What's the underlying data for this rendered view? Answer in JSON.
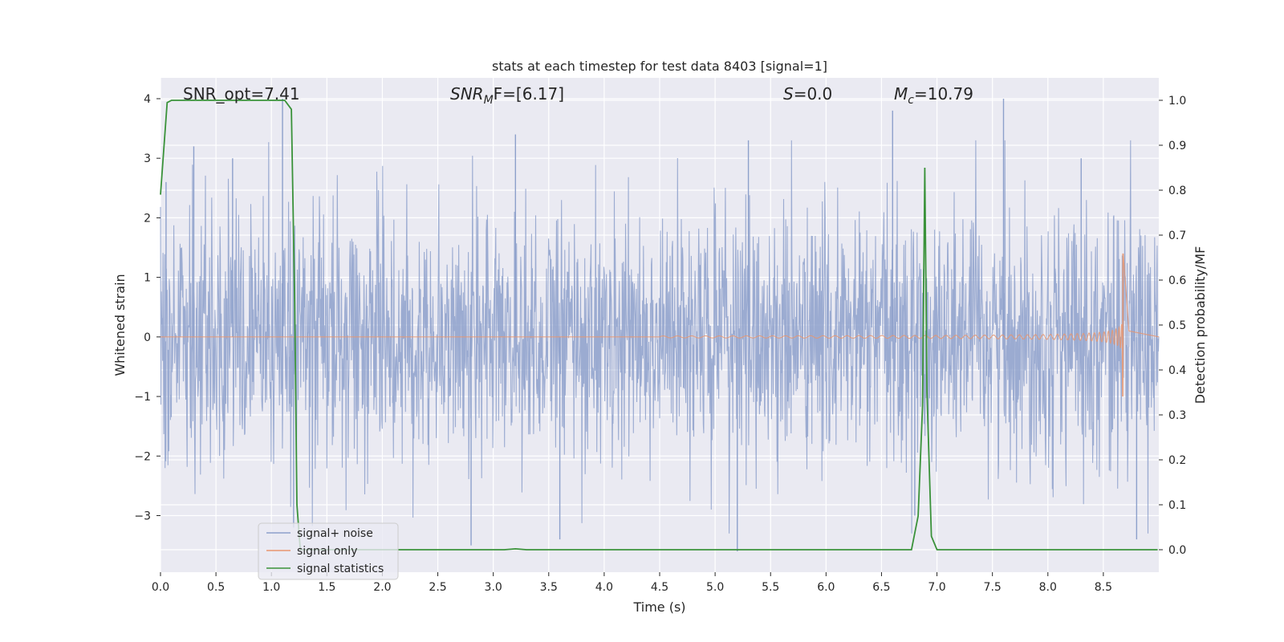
{
  "chart_data": {
    "type": "line",
    "title": "stats at each timestep for test data 8403 [signal=1]",
    "xlabel": "Time (s)",
    "ylabel": "Whitened strain",
    "ylabel_right": "Detection probability/MF",
    "xlim": [
      0.0,
      9.0
    ],
    "ylim": [
      -3.95,
      4.35
    ],
    "ylim_right": [
      -0.05,
      1.05
    ],
    "x_ticks": [
      "0.0",
      "0.5",
      "1.0",
      "1.5",
      "2.0",
      "2.5",
      "3.0",
      "3.5",
      "4.0",
      "4.5",
      "5.0",
      "5.5",
      "6.0",
      "6.5",
      "7.0",
      "7.5",
      "8.0",
      "8.5"
    ],
    "y_ticks": [
      "−3",
      "−2",
      "−1",
      "0",
      "1",
      "2",
      "3",
      "4"
    ],
    "y_ticks_right": [
      "0.0",
      "0.1",
      "0.2",
      "0.3",
      "0.4",
      "0.5",
      "0.6",
      "0.7",
      "0.8",
      "0.9",
      "1.0"
    ],
    "grid": true,
    "legend_position": "lower-left",
    "annotations": [
      {
        "label": "SNR_opt=7.41"
      },
      {
        "label_main": "SNR",
        "label_sub": "M",
        "label_rest": "F=[6.17]"
      },
      {
        "label_main": "S",
        "label_rest": "=0.0"
      },
      {
        "label_main": "M",
        "label_sub": "c",
        "label_rest": "=10.79"
      }
    ],
    "series": [
      {
        "name": "signal+ noise",
        "color": "#8da0cb",
        "axis": "left",
        "description_values": "whitened noisy strain, roughly ±1.6 spread with peaks near 4.0 (t≈1.1, 7.6) and −3.6 (t≈5.2)",
        "peaks": [
          [
            0.05,
            2.6
          ],
          [
            0.3,
            3.2
          ],
          [
            0.65,
            3.0
          ],
          [
            1.1,
            4.0
          ],
          [
            3.2,
            3.4
          ],
          [
            5.3,
            3.3
          ],
          [
            6.6,
            3.8
          ],
          [
            7.6,
            4.0
          ],
          [
            8.3,
            3.0
          ],
          [
            5.2,
            -3.6
          ],
          [
            2.8,
            -3.5
          ],
          [
            3.6,
            -3.4
          ],
          [
            8.8,
            -3.4
          ],
          [
            1.2,
            -3.2
          ],
          [
            6.8,
            -3.0
          ]
        ]
      },
      {
        "name": "signal only",
        "color": "#e8956f",
        "axis": "left",
        "chirp": {
          "start_time": 4.5,
          "merger_time": 8.68,
          "end_amplitude_pos": 1.4,
          "end_amplitude_neg": -1.0
        }
      },
      {
        "name": "signal statistics",
        "color": "#3a923a",
        "axis": "right",
        "x": [
          0.0,
          0.06,
          0.1,
          0.2,
          0.6,
          1.0,
          1.12,
          1.18,
          1.21,
          1.23,
          1.26,
          2.5,
          3.1,
          3.2,
          3.3,
          6.0,
          6.77,
          6.83,
          6.87,
          6.89,
          6.91,
          6.95,
          7.0,
          8.99
        ],
        "values": [
          0.79,
          0.995,
          1.0,
          1.0,
          1.0,
          1.0,
          1.0,
          0.98,
          0.55,
          0.1,
          0.0,
          0.0,
          0.0,
          0.002,
          0.0,
          0.0,
          0.0,
          0.075,
          0.32,
          0.85,
          0.35,
          0.03,
          0.0,
          0.0
        ]
      }
    ]
  }
}
